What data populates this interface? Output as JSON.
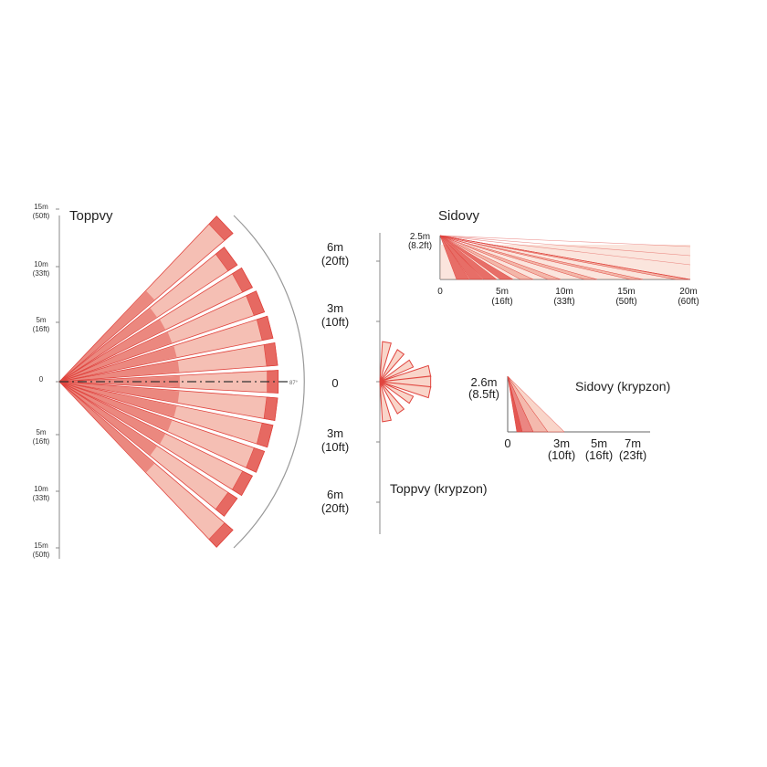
{
  "top_view": {
    "title": "Toppvy",
    "ticks": [
      {
        "m": "15m",
        "ft": "(50ft)"
      },
      {
        "m": "10m",
        "ft": "(33ft)"
      },
      {
        "m": "5m",
        "ft": "(16ft)"
      },
      {
        "m": "0",
        "ft": ""
      },
      {
        "m": "5m",
        "ft": "(16ft)"
      },
      {
        "m": "10m",
        "ft": "(33ft)"
      },
      {
        "m": "15m",
        "ft": "(50ft)"
      }
    ],
    "angle_label": "87°",
    "beam_count": 13
  },
  "top_view_creep": {
    "title": "Toppvy (krypzon)",
    "ticks": [
      {
        "m": "6m",
        "ft": "(20ft)"
      },
      {
        "m": "3m",
        "ft": "(10ft)"
      },
      {
        "m": "0",
        "ft": ""
      },
      {
        "m": "3m",
        "ft": "(10ft)"
      },
      {
        "m": "6m",
        "ft": "(20ft)"
      }
    ]
  },
  "side_view": {
    "title": "Sidovy",
    "height": {
      "m": "2.5m",
      "ft": "(8.2ft)"
    },
    "ticks": [
      {
        "m": "0",
        "ft": ""
      },
      {
        "m": "5m",
        "ft": "(16ft)"
      },
      {
        "m": "10m",
        "ft": "(33ft)"
      },
      {
        "m": "15m",
        "ft": "(50ft)"
      },
      {
        "m": "20m",
        "ft": "(60ft)"
      }
    ]
  },
  "side_view_creep": {
    "title": "Sidovy (krypzon)",
    "height": {
      "m": "2.6m",
      "ft": "(8.5ft)"
    },
    "ticks": [
      {
        "m": "0",
        "ft": ""
      },
      {
        "m": "3m",
        "ft": "(10ft)"
      },
      {
        "m": "5m",
        "ft": "(16ft)"
      },
      {
        "m": "7m",
        "ft": "(23ft)"
      }
    ]
  },
  "colors": {
    "beam_dark": "#e0453f",
    "beam_mid": "#ec8a76",
    "beam_light": "#f7cbbb",
    "axis": "#888888",
    "arc": "#999999"
  }
}
